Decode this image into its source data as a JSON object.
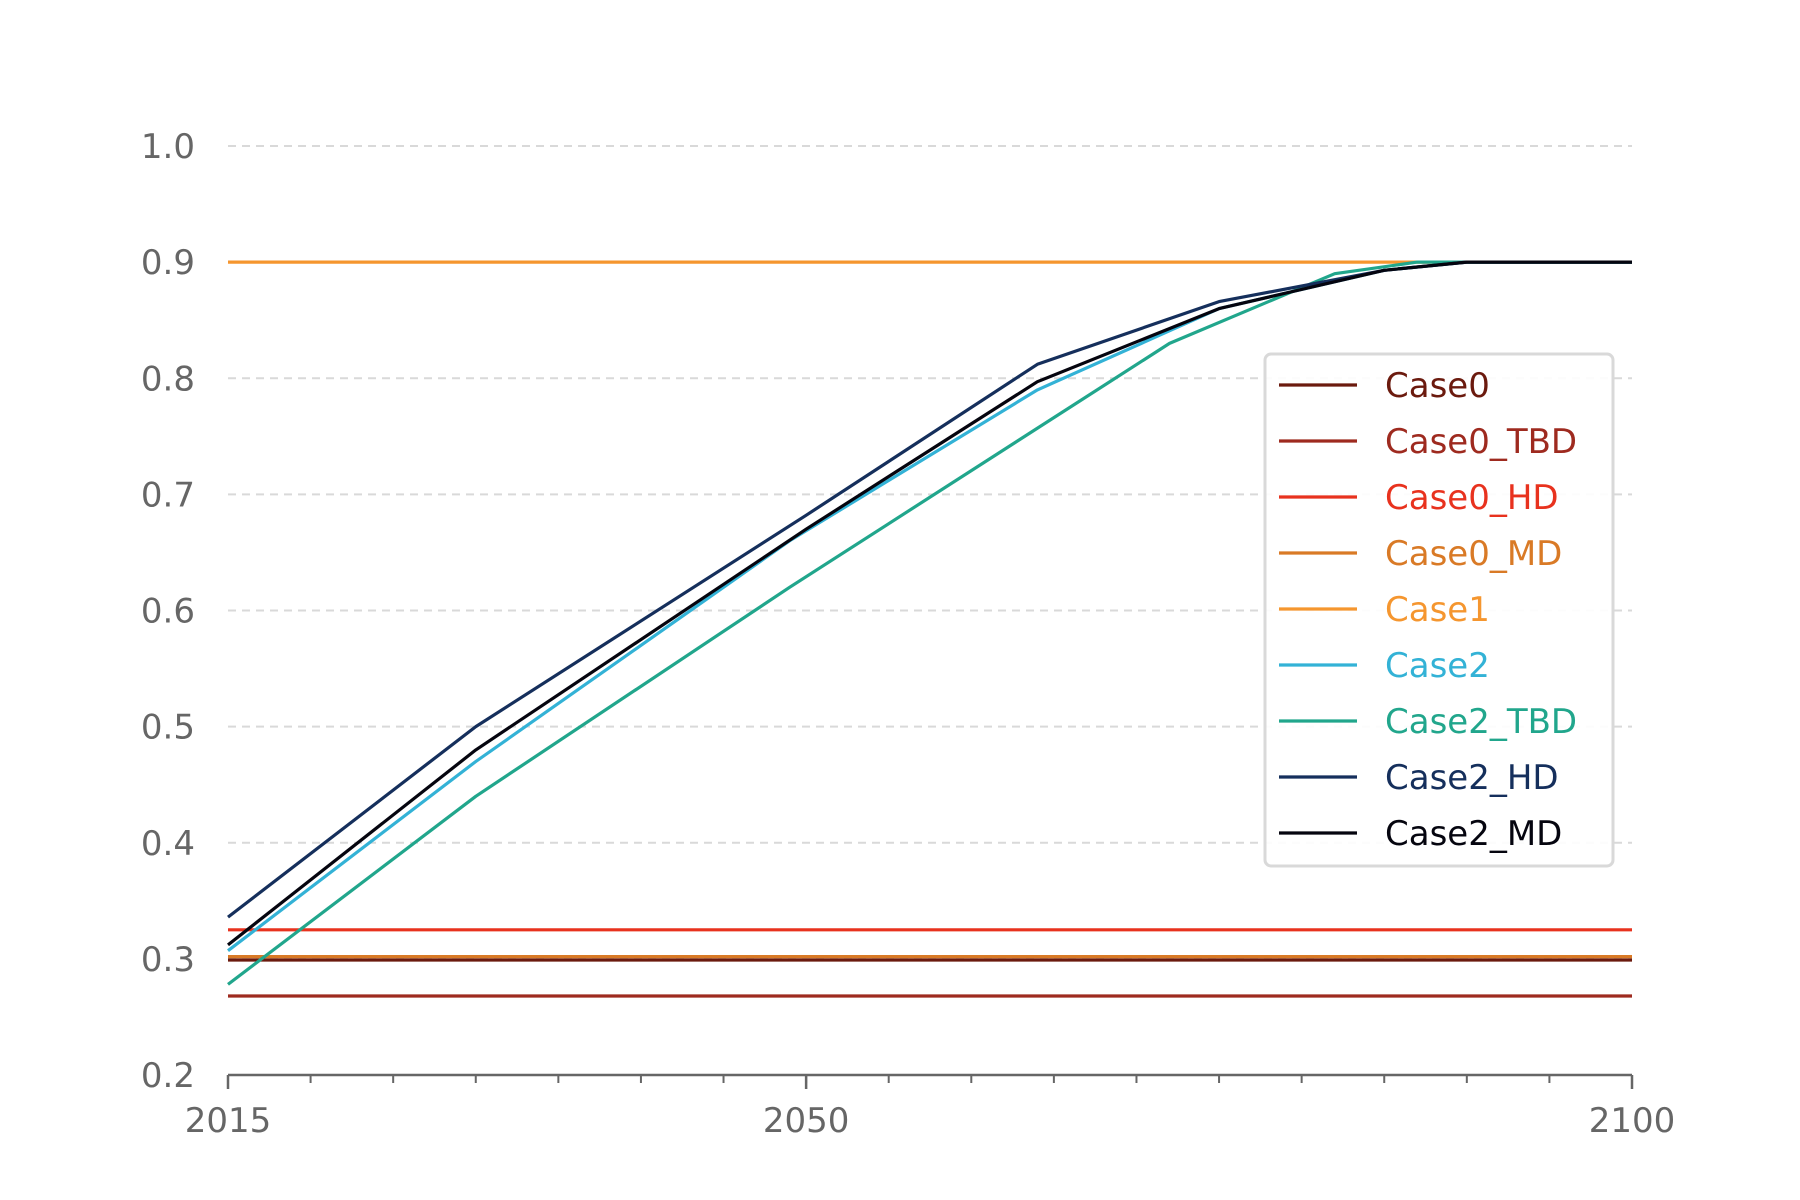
{
  "chart_data": {
    "type": "line",
    "title": "",
    "xlabel": "",
    "ylabel": "",
    "xlim": [
      2015,
      2100
    ],
    "ylim": [
      0.2,
      1.0
    ],
    "x_ticks": [
      2015,
      2050,
      2100
    ],
    "x_tick_labels": [
      "2015",
      "2050",
      "2100"
    ],
    "x_minor_tick_step": 5,
    "y_ticks": [
      0.2,
      0.3,
      0.4,
      0.5,
      0.6,
      0.7,
      0.8,
      0.9,
      1.0
    ],
    "y_tick_labels": [
      "0.2",
      "0.3",
      "0.4",
      "0.5",
      "0.6",
      "0.7",
      "0.8",
      "0.9",
      "1.0"
    ],
    "grid": "horizontal dashed",
    "legend_position": "center-right",
    "colors": {
      "axis": "#666666",
      "tick_label": "#666666",
      "grid": "#d9d9d9",
      "legend_border": "#d9d9d9"
    },
    "series": [
      {
        "name": "Case0",
        "color": "#6b1a0e",
        "x": [
          2015,
          2100
        ],
        "y": [
          0.299,
          0.299
        ]
      },
      {
        "name": "Case0_TBD",
        "color": "#9e2a1f",
        "x": [
          2015,
          2100
        ],
        "y": [
          0.268,
          0.268
        ]
      },
      {
        "name": "Case0_HD",
        "color": "#e8321e",
        "x": [
          2015,
          2100
        ],
        "y": [
          0.325,
          0.325
        ]
      },
      {
        "name": "Case0_MD",
        "color": "#d97a26",
        "x": [
          2015,
          2100
        ],
        "y": [
          0.302,
          0.302
        ]
      },
      {
        "name": "Case1",
        "color": "#f5962f",
        "x": [
          2015,
          2100
        ],
        "y": [
          0.9,
          0.9
        ]
      },
      {
        "name": "Case2",
        "color": "#33b2d6",
        "x": [
          2015,
          2030,
          2049,
          2064,
          2075,
          2085,
          2090,
          2100
        ],
        "y": [
          0.307,
          0.47,
          0.66,
          0.79,
          0.86,
          0.893,
          0.9,
          0.9
        ]
      },
      {
        "name": "Case2_TBD",
        "color": "#21a68c",
        "x": [
          2015,
          2030,
          2049,
          2072,
          2082,
          2087,
          2100
        ],
        "y": [
          0.278,
          0.44,
          0.62,
          0.83,
          0.89,
          0.9,
          0.9
        ]
      },
      {
        "name": "Case2_HD",
        "color": "#152f5c",
        "x": [
          2015,
          2030,
          2050,
          2064,
          2075,
          2085,
          2090,
          2100
        ],
        "y": [
          0.336,
          0.5,
          0.682,
          0.812,
          0.866,
          0.893,
          0.9,
          0.9
        ]
      },
      {
        "name": "Case2_MD",
        "color": "#05050f",
        "x": [
          2015,
          2030,
          2050,
          2064,
          2075,
          2085,
          2090,
          2100
        ],
        "y": [
          0.312,
          0.48,
          0.67,
          0.797,
          0.86,
          0.893,
          0.9,
          0.9
        ]
      }
    ]
  }
}
